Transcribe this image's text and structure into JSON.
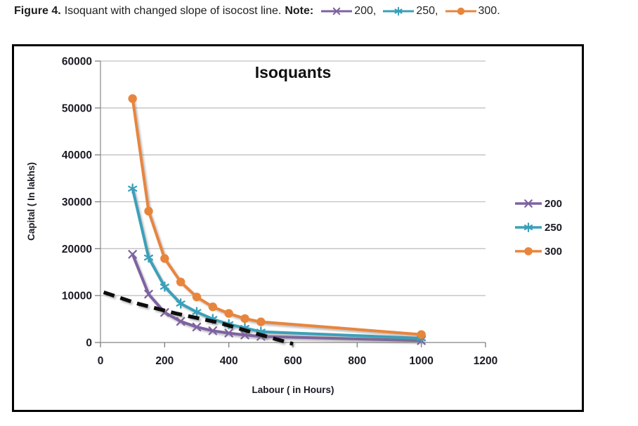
{
  "figure_caption": {
    "figure_label": "Figure 4.",
    "description": "Isoquant with changed slope of isocost line.",
    "note_label": "Note:",
    "note_items": [
      {
        "series": "200",
        "label": "200,"
      },
      {
        "series": "250",
        "label": "250,"
      },
      {
        "series": "300",
        "label": "300."
      }
    ]
  },
  "chart_data": {
    "type": "line",
    "title": "Isoquants",
    "xlabel": "Labour ( in Hours)",
    "ylabel": "Capital ( In lakhs)",
    "xlim": [
      0,
      1200
    ],
    "ylim": [
      0,
      60000
    ],
    "x_ticks": [
      0,
      200,
      400,
      600,
      800,
      1000,
      1200
    ],
    "y_ticks": [
      0,
      10000,
      20000,
      30000,
      40000,
      50000,
      60000
    ],
    "grid": "horizontal",
    "legend_position": "right",
    "legend_entries": [
      "200",
      "250",
      "300"
    ],
    "x": [
      100,
      150,
      200,
      250,
      300,
      350,
      400,
      450,
      500,
      1000
    ],
    "series": [
      {
        "name": "200",
        "marker": "x",
        "color": "#7E62A1",
        "values": [
          18800,
          10300,
          6400,
          4500,
          3300,
          2500,
          2000,
          1600,
          1300,
          400
        ]
      },
      {
        "name": "250",
        "marker": "asterisk",
        "color": "#3AA0B9",
        "values": [
          32800,
          18100,
          11900,
          8300,
          6500,
          5000,
          3900,
          3100,
          2300,
          900
        ]
      },
      {
        "name": "300",
        "marker": "circle",
        "color": "#E8853C",
        "values": [
          52000,
          28000,
          17900,
          12900,
          9700,
          7600,
          6200,
          5100,
          4400,
          1700
        ]
      }
    ],
    "isocost_line": {
      "style": "dashed",
      "color": "#0b0b0b",
      "points": [
        [
          10,
          10700
        ],
        [
          110,
          8400
        ],
        [
          235,
          6200
        ],
        [
          370,
          4200
        ],
        [
          495,
          1700
        ],
        [
          600,
          -300
        ]
      ]
    }
  },
  "colors": {
    "grid": "#c2c2c2",
    "axis": "#999999",
    "tick": "#7d7d7d",
    "tick_label": "#1a1a24",
    "title_text": "#111111",
    "caption_text": "#1d1d1d"
  }
}
